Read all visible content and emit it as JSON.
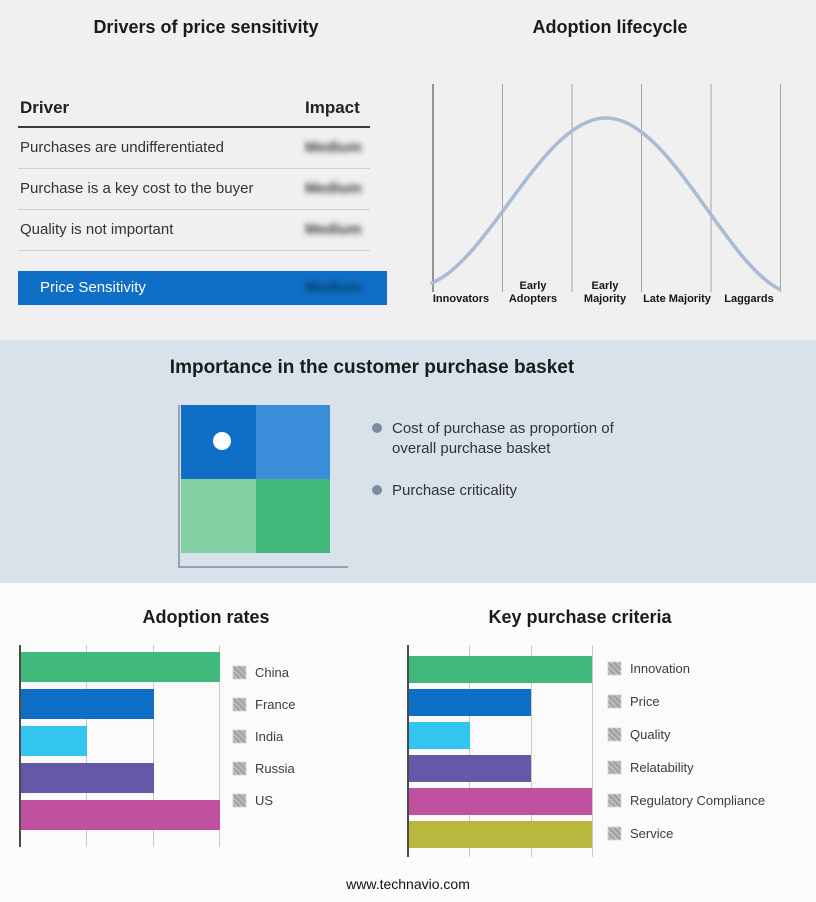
{
  "palette": {
    "accent_blue": "#0f6fc6",
    "light_blue": "#3a8ed9",
    "green": "#41b87c",
    "light_green": "#84cfa4",
    "cyan": "#32c5f0",
    "purple": "#6458a8",
    "magenta": "#c050a0",
    "olive": "#b8b83e",
    "curve_blue": "#a9bcd4",
    "band_top_bg": "#f0f0f1",
    "band_middle_bg": "#d9e1ea",
    "band_bottom_bg": "#fbfbfb"
  },
  "drivers": {
    "title": "Drivers of price sensitivity",
    "columns": {
      "driver": "Driver",
      "impact": "Impact"
    },
    "rows": [
      {
        "driver": "Purchases are undifferentiated",
        "impact": "Medium"
      },
      {
        "driver": "Purchase is a key cost to the buyer",
        "impact": "Medium"
      },
      {
        "driver": "Quality is not important",
        "impact": "Medium"
      }
    ],
    "summary": {
      "label": "Price Sensitivity",
      "impact": "Medium"
    },
    "impact_redacted": true
  },
  "lifecycle": {
    "title": "Adoption lifecycle",
    "stages": [
      "Innovators",
      "Early Adopters",
      "Early Majority",
      "Late Majority",
      "Laggards"
    ]
  },
  "basket": {
    "title": "Importance in the customer purchase basket",
    "bullets": [
      "Cost of purchase as proportion of overall purchase basket",
      "Purchase criticality"
    ],
    "marker_quadrant": "top-left"
  },
  "adoption_rates": {
    "title": "Adoption rates",
    "legend": [
      "China",
      "France",
      "India",
      "Russia",
      "US"
    ]
  },
  "key_criteria": {
    "title": "Key purchase criteria",
    "legend": [
      "Innovation",
      "Price",
      "Quality",
      "Relatability",
      "Regulatory Compliance",
      "Service"
    ]
  },
  "footer": "www.technavio.com",
  "chart_data": [
    {
      "type": "line",
      "title": "Adoption lifecycle",
      "categories": [
        "Innovators",
        "Early Adopters",
        "Early Majority",
        "Late Majority",
        "Laggards"
      ],
      "shape": "bell curve rising from Innovators, peaking over Early Majority, falling through Laggards",
      "grid": true,
      "legend_position": "none"
    },
    {
      "type": "bar",
      "orientation": "horizontal",
      "title": "Adoption rates",
      "categories": [
        "China",
        "France",
        "India",
        "Russia",
        "US"
      ],
      "values": [
        3,
        2,
        1,
        2,
        3
      ],
      "xlim": [
        0,
        3
      ],
      "colors": [
        "#41b87c",
        "#0f6fc6",
        "#32c5f0",
        "#6458a8",
        "#c050a0"
      ],
      "grid": true,
      "legend_position": "right"
    },
    {
      "type": "bar",
      "orientation": "horizontal",
      "title": "Key purchase criteria",
      "categories": [
        "Innovation",
        "Price",
        "Quality",
        "Relatability",
        "Regulatory Compliance",
        "Service"
      ],
      "values": [
        3,
        2,
        1,
        2,
        3,
        3
      ],
      "xlim": [
        0,
        3
      ],
      "colors": [
        "#41b87c",
        "#0f6fc6",
        "#32c5f0",
        "#6458a8",
        "#c050a0",
        "#b8b83e"
      ],
      "grid": true,
      "legend_position": "right"
    }
  ]
}
